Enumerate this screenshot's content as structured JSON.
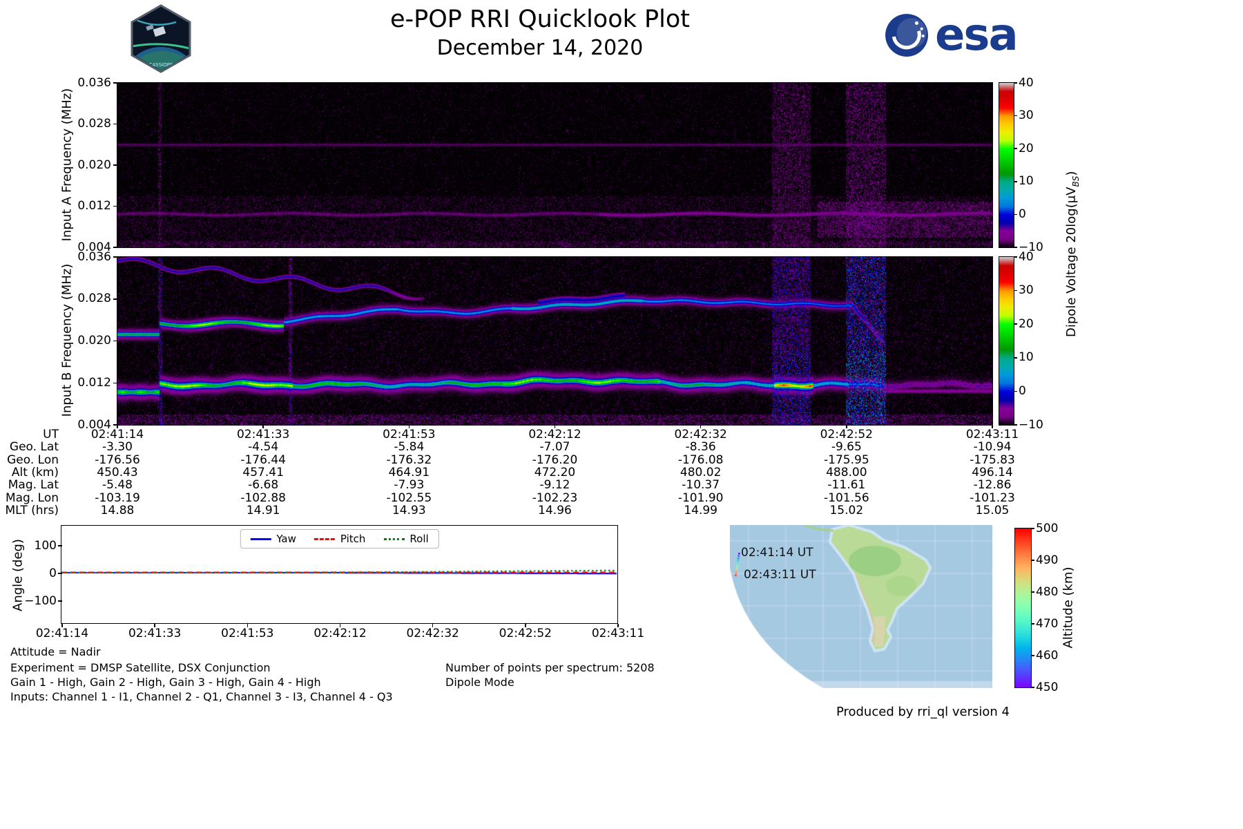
{
  "header": {
    "title": "e-POP RRI Quicklook Plot",
    "date": "December 14, 2020",
    "esa_wordmark": "esa",
    "cassiope_label": "CASSIOPE"
  },
  "panel_a": {
    "ylabel": "Input A Frequency (MHz)",
    "yticks": [
      "0.036",
      "0.028",
      "0.020",
      "0.012",
      "0.004"
    ]
  },
  "panel_b": {
    "ylabel": "Input B Frequency (MHz)",
    "yticks": [
      "0.036",
      "0.028",
      "0.020",
      "0.012",
      "0.004"
    ]
  },
  "colorbar": {
    "ticks": [
      "40",
      "30",
      "20",
      "10",
      "0",
      "−10"
    ],
    "label_main": "Dipole Voltage 20log(μV",
    "label_sub": "BS",
    "label_end": ")"
  },
  "time_ticks": [
    "02:41:14",
    "02:41:33",
    "02:41:53",
    "02:42:12",
    "02:42:32",
    "02:42:52",
    "02:43:11"
  ],
  "ephemeris": {
    "rows": [
      {
        "label": "UT",
        "values": [
          "02:41:14",
          "02:41:33",
          "02:41:53",
          "02:42:12",
          "02:42:32",
          "02:42:52",
          "02:43:11"
        ]
      },
      {
        "label": "Geo. Lat",
        "values": [
          "-3.30",
          "-4.54",
          "-5.84",
          "-7.07",
          "-8.36",
          "-9.65",
          "-10.94"
        ]
      },
      {
        "label": "Geo. Lon",
        "values": [
          "-176.56",
          "-176.44",
          "-176.32",
          "-176.20",
          "-176.08",
          "-175.95",
          "-175.83"
        ]
      },
      {
        "label": "Alt (km)",
        "values": [
          "450.43",
          "457.41",
          "464.91",
          "472.20",
          "480.02",
          "488.00",
          "496.14"
        ]
      },
      {
        "label": "Mag. Lat",
        "values": [
          "-5.48",
          "-6.68",
          "-7.93",
          "-9.12",
          "-10.37",
          "-11.61",
          "-12.86"
        ]
      },
      {
        "label": "Mag. Lon",
        "values": [
          "-103.19",
          "-102.88",
          "-102.55",
          "-102.23",
          "-101.90",
          "-101.56",
          "-101.23"
        ]
      },
      {
        "label": "MLT (hrs)",
        "values": [
          "14.88",
          "14.91",
          "14.93",
          "14.96",
          "14.99",
          "15.02",
          "15.05"
        ]
      }
    ]
  },
  "angle_plot": {
    "ylabel": "Angle (deg)",
    "yticks": [
      "100",
      "0",
      "−100"
    ],
    "legend": [
      {
        "label": "Yaw",
        "color": "#0000ff",
        "style": "solid"
      },
      {
        "label": "Pitch",
        "color": "#ff0000",
        "style": "dashed"
      },
      {
        "label": "Roll",
        "color": "#008000",
        "style": "dotted"
      }
    ]
  },
  "annotations": {
    "left": [
      "Attitude = Nadir",
      "Experiment = DMSP Satellite, DSX Conjunction",
      "Gain 1 - High, Gain 2 - High, Gain 3 - High, Gain 4 - High",
      "Inputs: Channel 1 - I1, Channel 2 - Q1, Channel 3 - I3, Channel 4 - Q3"
    ],
    "right": [
      "Number of points per spectrum: 5208",
      "Dipole Mode"
    ]
  },
  "map": {
    "start_label": "02:41:14 UT",
    "end_label": "02:43:11 UT",
    "colorbar_label": "Altitude (km)",
    "colorbar_ticks": [
      "500",
      "490",
      "480",
      "470",
      "460",
      "450"
    ]
  },
  "footer": {
    "produced_by": "Produced by rri_ql version 4"
  },
  "chart_data": [
    {
      "type": "heatmap",
      "name": "input_a_spectrogram",
      "title": "Input A",
      "xlabel": "UT",
      "x_range": [
        "02:41:14",
        "02:43:11"
      ],
      "ylabel": "Input A Frequency (MHz)",
      "ylim": [
        0.004,
        0.036
      ],
      "color_label": "Dipole Voltage 20log(μV_BS)",
      "color_range": [
        -10,
        40
      ],
      "colormap": "nipy_spectral",
      "summary": "Near the −10 dB noise floor everywhere; very faint emission near 0.010–0.012 MHz, slightly enhanced after 02:42:40."
    },
    {
      "type": "heatmap",
      "name": "input_b_spectrogram",
      "title": "Input B",
      "xlabel": "UT",
      "x_range": [
        "02:41:14",
        "02:43:11"
      ],
      "ylabel": "Input B Frequency (MHz)",
      "ylim": [
        0.004,
        0.036
      ],
      "color_label": "Dipole Voltage 20log(μV_BS)",
      "color_range": [
        -10,
        40
      ],
      "colormap": "nipy_spectral",
      "features": [
        {
          "freq_mhz": "0.011-0.013",
          "level_db": "10 to 30",
          "extent": "continuous band across the whole pass, brightest 02:41:17-02:41:35, near 02:42:12 and ~02:42:45"
        },
        {
          "freq_mhz": "0.021-0.024",
          "level_db": "15 to 25",
          "extent": "strong band from 02:41:14 to ~02:41:37"
        },
        {
          "freq_mhz": "0.024-0.028",
          "level_db": "5 to 15",
          "extent": "thin drifting line rising to ~0.028 MHz by 02:42:12 then slowly descending, fading after 02:42:55"
        },
        {
          "freq_mhz": "0.031-0.036",
          "level_db": "0 to 8",
          "extent": "faint wavy line at top left descending from 0.035 MHz"
        },
        {
          "freq_mhz": "broadband",
          "level_db": "-5 to 5",
          "extent": "vertical noise bursts near 02:41:18, 02:42:43-02:42:47 and 02:42:53-02:42:58"
        }
      ]
    },
    {
      "type": "table",
      "name": "ephemeris",
      "rows": [
        {
          "label": "UT",
          "values": [
            "02:41:14",
            "02:41:33",
            "02:41:53",
            "02:42:12",
            "02:42:32",
            "02:42:52",
            "02:43:11"
          ]
        },
        {
          "label": "Geo. Lat",
          "values": [
            "-3.30",
            "-4.54",
            "-5.84",
            "-7.07",
            "-8.36",
            "-9.65",
            "-10.94"
          ]
        },
        {
          "label": "Geo. Lon",
          "values": [
            "-176.56",
            "-176.44",
            "-176.32",
            "-176.20",
            "-176.08",
            "-175.95",
            "-175.83"
          ]
        },
        {
          "label": "Alt (km)",
          "values": [
            "450.43",
            "457.41",
            "464.91",
            "472.20",
            "480.02",
            "488.00",
            "496.14"
          ]
        },
        {
          "label": "Mag. Lat",
          "values": [
            "-5.48",
            "-6.68",
            "-7.93",
            "-9.12",
            "-10.37",
            "-11.61",
            "-12.86"
          ]
        },
        {
          "label": "Mag. Lon",
          "values": [
            "-103.19",
            "-102.88",
            "-102.55",
            "-102.23",
            "-101.90",
            "-101.56",
            "-101.23"
          ]
        },
        {
          "label": "MLT (hrs)",
          "values": [
            "14.88",
            "14.91",
            "14.93",
            "14.96",
            "14.99",
            "15.02",
            "15.05"
          ]
        }
      ]
    },
    {
      "type": "line",
      "name": "attitude_angles",
      "title": "",
      "xlabel": "UT",
      "ylabel": "Angle (deg)",
      "ylim": [
        -175,
        175
      ],
      "legend_position": "upper center",
      "categories": [
        "02:41:14",
        "02:41:33",
        "02:41:53",
        "02:42:12",
        "02:42:32",
        "02:42:52",
        "02:43:11"
      ],
      "series": [
        {
          "name": "Yaw",
          "values": [
            0,
            0,
            0,
            0,
            -1,
            -2,
            -3
          ]
        },
        {
          "name": "Pitch",
          "values": [
            1,
            1,
            1,
            1,
            1,
            1,
            1
          ]
        },
        {
          "name": "Roll",
          "values": [
            0,
            0,
            0,
            1,
            3,
            6,
            8
          ]
        }
      ]
    },
    {
      "type": "map",
      "name": "ground_track",
      "region": "South America / South Pacific",
      "track": [
        {
          "ut": "02:41:14",
          "alt_km": 450.43
        },
        {
          "ut": "02:43:11",
          "alt_km": 496.14
        }
      ],
      "colorbar": {
        "label": "Altitude (km)",
        "range": [
          450,
          500
        ]
      }
    }
  ]
}
